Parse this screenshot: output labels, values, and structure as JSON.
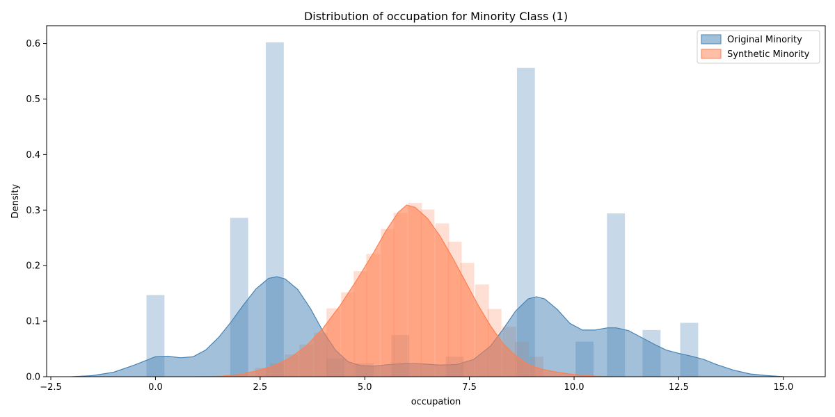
{
  "chart_data": {
    "type": "histogram-kde",
    "title": "Distribution of occupation for Minority Class (1)",
    "xlabel": "occupation",
    "ylabel": "Density",
    "xlim": [
      -2.6,
      16.0
    ],
    "ylim": [
      0,
      0.632
    ],
    "x_ticks": [
      -2.5,
      0.0,
      2.5,
      5.0,
      7.5,
      10.0,
      12.5,
      15.0
    ],
    "x_tick_labels": [
      "−2.5",
      "0.0",
      "2.5",
      "5.0",
      "7.5",
      "10.0",
      "12.5",
      "15.0"
    ],
    "y_ticks": [
      0.0,
      0.1,
      0.2,
      0.3,
      0.4,
      0.5,
      0.6
    ],
    "y_tick_labels": [
      "0.0",
      "0.1",
      "0.2",
      "0.3",
      "0.4",
      "0.5",
      "0.6"
    ],
    "legend_position": "top-right",
    "series": [
      {
        "name": "Original Minority",
        "color": "#4682b4",
        "hist": {
          "bin_width": 0.43,
          "bars": [
            {
              "x": 0.0,
              "density": 0.147
            },
            {
              "x": 2.0,
              "density": 0.286
            },
            {
              "x": 2.85,
              "density": 0.602
            },
            {
              "x": 4.3,
              "density": 0.033
            },
            {
              "x": 5.0,
              "density": 0.024
            },
            {
              "x": 5.85,
              "density": 0.075
            },
            {
              "x": 7.15,
              "density": 0.036
            },
            {
              "x": 8.85,
              "density": 0.556
            },
            {
              "x": 10.25,
              "density": 0.063
            },
            {
              "x": 11.0,
              "density": 0.294
            },
            {
              "x": 11.85,
              "density": 0.084
            },
            {
              "x": 12.75,
              "density": 0.097
            }
          ]
        },
        "kde": [
          [
            -2.0,
            0.0
          ],
          [
            -1.5,
            0.002
          ],
          [
            -1.0,
            0.008
          ],
          [
            -0.5,
            0.021
          ],
          [
            0.0,
            0.036
          ],
          [
            0.3,
            0.037
          ],
          [
            0.6,
            0.034
          ],
          [
            0.9,
            0.036
          ],
          [
            1.2,
            0.048
          ],
          [
            1.5,
            0.07
          ],
          [
            1.8,
            0.098
          ],
          [
            2.1,
            0.129
          ],
          [
            2.4,
            0.158
          ],
          [
            2.7,
            0.177
          ],
          [
            2.9,
            0.18
          ],
          [
            3.1,
            0.176
          ],
          [
            3.4,
            0.157
          ],
          [
            3.7,
            0.123
          ],
          [
            4.0,
            0.082
          ],
          [
            4.3,
            0.048
          ],
          [
            4.6,
            0.027
          ],
          [
            4.9,
            0.02
          ],
          [
            5.2,
            0.019
          ],
          [
            5.6,
            0.022
          ],
          [
            6.0,
            0.024
          ],
          [
            6.4,
            0.023
          ],
          [
            6.8,
            0.021
          ],
          [
            7.2,
            0.022
          ],
          [
            7.6,
            0.031
          ],
          [
            8.0,
            0.055
          ],
          [
            8.3,
            0.085
          ],
          [
            8.6,
            0.118
          ],
          [
            8.9,
            0.14
          ],
          [
            9.1,
            0.144
          ],
          [
            9.3,
            0.14
          ],
          [
            9.6,
            0.121
          ],
          [
            9.9,
            0.096
          ],
          [
            10.2,
            0.084
          ],
          [
            10.5,
            0.084
          ],
          [
            10.8,
            0.088
          ],
          [
            11.0,
            0.088
          ],
          [
            11.3,
            0.083
          ],
          [
            11.6,
            0.071
          ],
          [
            11.9,
            0.059
          ],
          [
            12.2,
            0.048
          ],
          [
            12.5,
            0.042
          ],
          [
            12.8,
            0.037
          ],
          [
            13.1,
            0.031
          ],
          [
            13.4,
            0.022
          ],
          [
            13.8,
            0.012
          ],
          [
            14.2,
            0.005
          ],
          [
            14.6,
            0.002
          ],
          [
            15.0,
            0.0
          ]
        ]
      },
      {
        "name": "Synthetic Minority",
        "color": "#ff7f50",
        "hist": {
          "bin_width": 0.33,
          "bars": [
            {
              "x": 2.55,
              "density": 0.016
            },
            {
              "x": 2.9,
              "density": 0.024
            },
            {
              "x": 3.25,
              "density": 0.04
            },
            {
              "x": 3.6,
              "density": 0.058
            },
            {
              "x": 3.95,
              "density": 0.079
            },
            {
              "x": 4.25,
              "density": 0.123
            },
            {
              "x": 4.6,
              "density": 0.152
            },
            {
              "x": 4.9,
              "density": 0.19
            },
            {
              "x": 5.2,
              "density": 0.221
            },
            {
              "x": 5.55,
              "density": 0.266
            },
            {
              "x": 5.85,
              "density": 0.295
            },
            {
              "x": 6.2,
              "density": 0.313
            },
            {
              "x": 6.5,
              "density": 0.301
            },
            {
              "x": 6.85,
              "density": 0.276
            },
            {
              "x": 7.15,
              "density": 0.243
            },
            {
              "x": 7.45,
              "density": 0.205
            },
            {
              "x": 7.8,
              "density": 0.166
            },
            {
              "x": 8.1,
              "density": 0.122
            },
            {
              "x": 8.45,
              "density": 0.09
            },
            {
              "x": 8.75,
              "density": 0.063
            },
            {
              "x": 9.1,
              "density": 0.036
            }
          ]
        },
        "kde": [
          [
            1.0,
            0.0
          ],
          [
            1.6,
            0.001
          ],
          [
            2.0,
            0.004
          ],
          [
            2.4,
            0.01
          ],
          [
            2.8,
            0.019
          ],
          [
            3.2,
            0.033
          ],
          [
            3.6,
            0.055
          ],
          [
            4.0,
            0.087
          ],
          [
            4.4,
            0.127
          ],
          [
            4.8,
            0.173
          ],
          [
            5.2,
            0.222
          ],
          [
            5.5,
            0.262
          ],
          [
            5.8,
            0.296
          ],
          [
            6.0,
            0.309
          ],
          [
            6.2,
            0.305
          ],
          [
            6.5,
            0.285
          ],
          [
            6.8,
            0.253
          ],
          [
            7.1,
            0.214
          ],
          [
            7.4,
            0.172
          ],
          [
            7.7,
            0.13
          ],
          [
            8.0,
            0.092
          ],
          [
            8.3,
            0.06
          ],
          [
            8.6,
            0.038
          ],
          [
            8.9,
            0.022
          ],
          [
            9.2,
            0.014
          ],
          [
            9.6,
            0.008
          ],
          [
            10.0,
            0.004
          ],
          [
            10.5,
            0.001
          ],
          [
            11.0,
            0.0
          ]
        ]
      }
    ]
  }
}
